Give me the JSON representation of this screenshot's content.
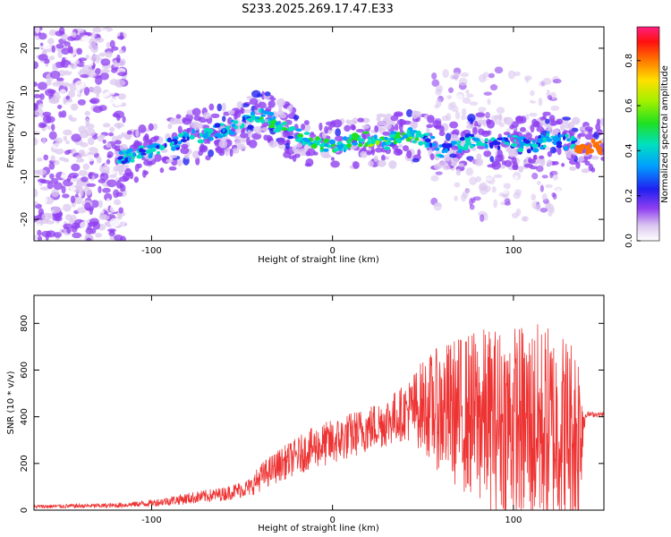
{
  "title": "S233.2025.269.17.47.E33",
  "colors": {
    "snr_line": "#ee3333",
    "axis": "#000000"
  },
  "colorbar": {
    "label": "Normalized spectral amplitude",
    "range": [
      0,
      0.95
    ],
    "ticks": [
      0,
      0.2,
      0.4,
      0.6,
      0.8
    ],
    "tick_labels": [
      "0.0",
      "0.2",
      "0.4",
      "0.6",
      "0.8"
    ]
  },
  "chart_data": [
    {
      "type": "heatmap",
      "name": "spectrogram",
      "xlabel": "Height of straight line (km)",
      "ylabel": "Frequency (Hz)",
      "xlim": [
        -165,
        150
      ],
      "ylim": [
        -25,
        25
      ],
      "xticks": [
        -100,
        0,
        100
      ],
      "xtick_labels": [
        "-100",
        "0",
        "100"
      ],
      "yticks": [
        -20,
        -10,
        0,
        10,
        20
      ],
      "ytick_labels": [
        "-20",
        "-10",
        "0",
        "10",
        "20"
      ],
      "ridge": {
        "x": [
          -118,
          -100,
          -80,
          -60,
          -45,
          -36,
          -32,
          -20,
          -10,
          0,
          10,
          20,
          30,
          40,
          50,
          55,
          60,
          70,
          80,
          90,
          100,
          110,
          120,
          130,
          140,
          148
        ],
        "y": [
          -6,
          -4,
          -1,
          1,
          3,
          5,
          2,
          0,
          -2,
          -3,
          -2,
          -1,
          -2,
          0,
          -1,
          -2,
          -4,
          -3,
          -1,
          -2,
          -2,
          -3,
          -1,
          -2,
          -3,
          -3
        ]
      }
    },
    {
      "type": "line",
      "name": "snr",
      "xlabel": "Height of straight line (km)",
      "ylabel": "SNR (10 * v/v)",
      "xlim": [
        -165,
        150
      ],
      "ylim": [
        0,
        920
      ],
      "xticks": [
        -100,
        0,
        100
      ],
      "xtick_labels": [
        "-100",
        "0",
        "100"
      ],
      "yticks": [
        0,
        200,
        400,
        600,
        800
      ],
      "ytick_labels": [
        "0",
        "200",
        "400",
        "600",
        "800"
      ],
      "envelope": {
        "x": [
          -165,
          -120,
          -100,
          -80,
          -60,
          -45,
          -40,
          -30,
          -20,
          -10,
          0,
          10,
          20,
          30,
          40,
          50,
          60,
          70,
          80,
          90,
          100,
          110,
          120,
          130,
          136,
          140,
          150
        ],
        "mean": [
          15,
          20,
          30,
          50,
          70,
          100,
          140,
          190,
          230,
          270,
          290,
          320,
          350,
          380,
          420,
          450,
          430,
          420,
          400,
          390,
          380,
          360,
          350,
          340,
          330,
          410,
          410
        ],
        "spread": [
          8,
          10,
          15,
          25,
          30,
          40,
          60,
          70,
          80,
          90,
          100,
          100,
          100,
          110,
          120,
          200,
          280,
          330,
          380,
          400,
          420,
          450,
          450,
          430,
          420,
          12,
          10
        ]
      }
    }
  ]
}
